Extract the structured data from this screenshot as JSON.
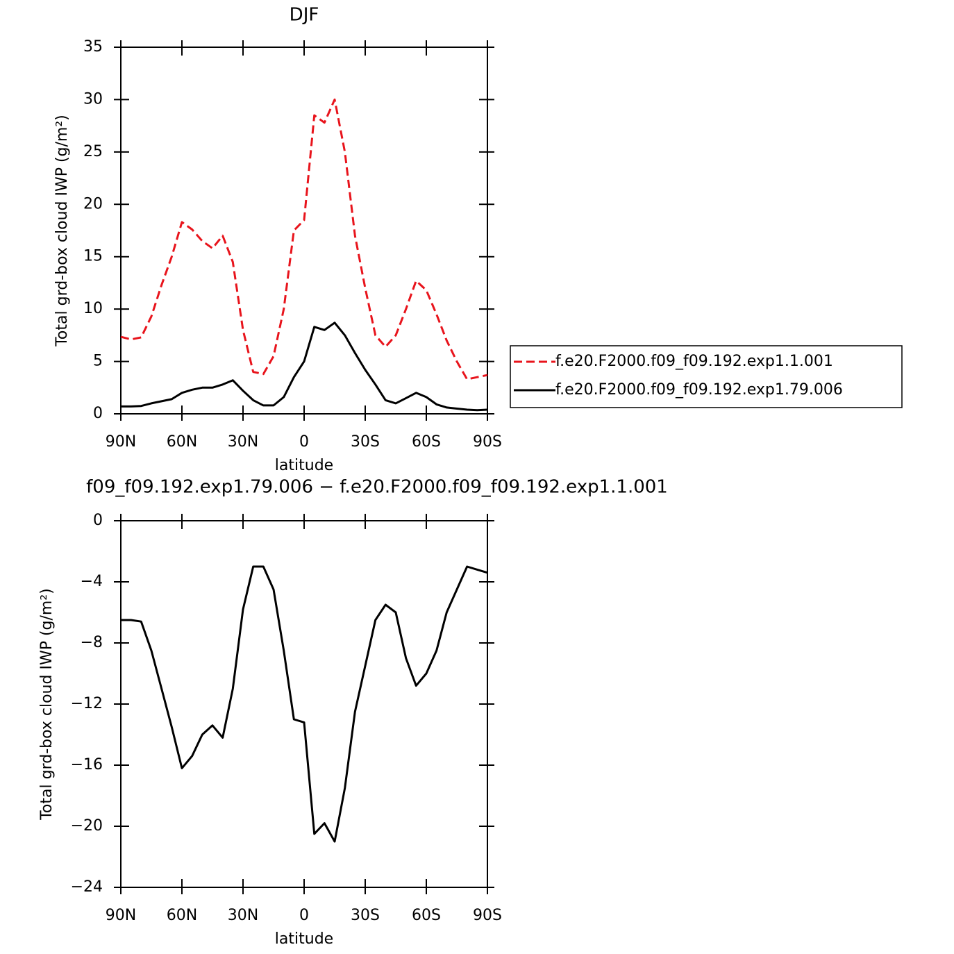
{
  "chart_data": [
    {
      "type": "line",
      "title": "DJF",
      "y_label": "Total grd-box cloud IWP (g/m²)",
      "x_label": "latitude",
      "x": [
        90,
        85,
        80,
        75,
        70,
        65,
        60,
        55,
        50,
        45,
        40,
        35,
        30,
        25,
        20,
        15,
        10,
        5,
        0,
        -5,
        -10,
        -15,
        -20,
        -25,
        -30,
        -35,
        -40,
        -45,
        -50,
        -55,
        -60,
        -65,
        -70,
        -75,
        -80,
        -85,
        -90
      ],
      "xlim": [
        90,
        -90
      ],
      "xticks": [
        {
          "value": 90,
          "label": "90N"
        },
        {
          "value": 60,
          "label": "60N"
        },
        {
          "value": 30,
          "label": "30N"
        },
        0,
        {
          "value": -30,
          "label": "30S"
        },
        {
          "value": -60,
          "label": "60S"
        },
        {
          "value": -90,
          "label": "90S"
        }
      ],
      "ylim": [
        0,
        35
      ],
      "yticks": [
        0,
        5,
        10,
        15,
        20,
        25,
        30,
        35
      ],
      "legend": "right",
      "series": [
        {
          "name": "f.e20.F2000.f09_f09.192.exp1.1.001",
          "color": "#e8141c",
          "dash": true,
          "values": [
            7.35,
            7.1,
            7.3,
            9.3,
            12.3,
            15,
            18.3,
            17.6,
            16.5,
            15.8,
            17.0,
            14.5,
            8,
            4.0,
            3.8,
            5.5,
            10,
            17.5,
            18.5,
            28.5,
            27.8,
            30,
            25,
            17,
            12,
            7.5,
            6.4,
            7.5,
            10,
            12.7,
            11.8,
            9.5,
            7,
            5,
            3.3,
            3.5,
            3.7
          ]
        },
        {
          "name": "f.e20.F2000.f09_f09.192.exp1.79.006",
          "color": "#000000",
          "dash": false,
          "values": [
            0.7,
            0.7,
            0.75,
            1.0,
            1.2,
            1.4,
            2.0,
            2.3,
            2.5,
            2.5,
            2.8,
            3.2,
            2.2,
            1.3,
            0.8,
            0.8,
            1.6,
            3.5,
            5.0,
            8.3,
            8.0,
            8.7,
            7.5,
            5.8,
            4.2,
            2.8,
            1.3,
            1.0,
            1.5,
            2.0,
            1.6,
            0.9,
            0.6,
            0.5,
            0.4,
            0.35,
            0.4
          ]
        }
      ]
    },
    {
      "type": "line",
      "title": "f09_f09.192.exp1.79.006 − f.e20.F2000.f09_f09.192.exp1.1.001",
      "y_label": "Total grd-box cloud IWP (g/m²)",
      "x_label": "latitude",
      "x": [
        90,
        85,
        80,
        75,
        70,
        65,
        60,
        55,
        50,
        45,
        40,
        35,
        30,
        25,
        20,
        15,
        10,
        5,
        0,
        -5,
        -10,
        -15,
        -20,
        -25,
        -30,
        -35,
        -40,
        -45,
        -50,
        -55,
        -60,
        -65,
        -70,
        -75,
        -80,
        -85,
        -90
      ],
      "xlim": [
        90,
        -90
      ],
      "xticks": [
        {
          "value": 90,
          "label": "90N"
        },
        {
          "value": 60,
          "label": "60N"
        },
        {
          "value": 30,
          "label": "30N"
        },
        0,
        {
          "value": -30,
          "label": "30S"
        },
        {
          "value": -60,
          "label": "60S"
        },
        {
          "value": -90,
          "label": "90S"
        }
      ],
      "ylim": [
        -24,
        0
      ],
      "yticks": [
        0,
        {
          "value": -4,
          "label": "−4"
        },
        {
          "value": -8,
          "label": "−8"
        },
        {
          "value": -12,
          "label": "−12"
        },
        {
          "value": -16,
          "label": "−16"
        },
        {
          "value": -20,
          "label": "−20"
        },
        {
          "value": -24,
          "label": "−24"
        }
      ],
      "color": "#000000",
      "values": [
        -6.5,
        -6.5,
        -6.6,
        -8.5,
        -11,
        -13.5,
        -16.2,
        -15.4,
        -14,
        -13.4,
        -14.2,
        -11,
        -5.8,
        -3.0,
        -3.0,
        -4.5,
        -8.5,
        -13,
        -13.2,
        -20.5,
        -19.8,
        -21,
        -17.5,
        -12.5,
        -9.5,
        -6.5,
        -5.5,
        -6,
        -9,
        -10.8,
        -10,
        -8.5,
        -6,
        -4.5,
        -3.0,
        -3.2,
        -3.4
      ]
    }
  ]
}
